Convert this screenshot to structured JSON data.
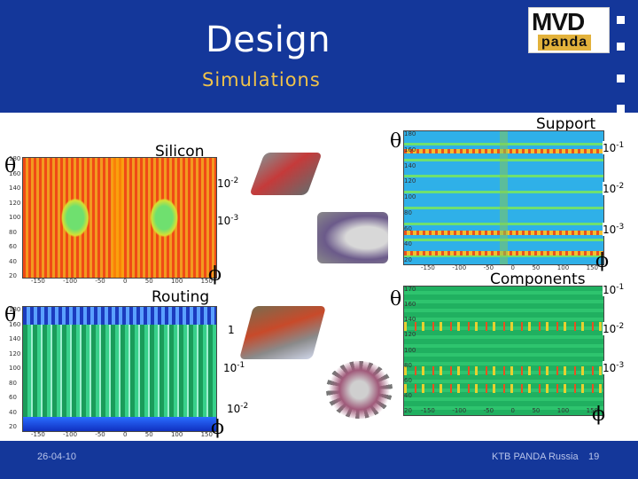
{
  "header": {
    "title": "Design",
    "subtitle": "Simulations",
    "logo_top": "MVD",
    "logo_bottom": "panda"
  },
  "panels": {
    "silicon": {
      "label": "Silicon",
      "scale": [
        "10",
        "10"
      ],
      "exp": [
        "-2",
        "-3"
      ]
    },
    "routing": {
      "label": "Routing",
      "scale": [
        "1",
        "10",
        "10"
      ],
      "exp": [
        "",
        "-1",
        "-2"
      ]
    },
    "support": {
      "label": "Support",
      "scale": [
        "10",
        "10",
        "10"
      ],
      "exp": [
        "-1",
        "-2",
        "-3"
      ]
    },
    "components": {
      "label": "Components",
      "scale": [
        "10",
        "10",
        "10"
      ],
      "exp": [
        "-1",
        "-2",
        "-3"
      ]
    }
  },
  "symbols": {
    "theta": "θ",
    "phi": "ϕ"
  },
  "axis": {
    "x_ticks": [
      "-150",
      "-100",
      "-50",
      "0",
      "50",
      "100",
      "150"
    ],
    "y_ticks_silicon": [
      "180",
      "160",
      "140",
      "120",
      "100",
      "80",
      "60",
      "40",
      "20"
    ],
    "y_ticks_routing": [
      "180",
      "160",
      "140",
      "120",
      "100",
      "80",
      "60",
      "40",
      "20"
    ],
    "y_ticks_support": [
      "180",
      "160",
      "140",
      "120",
      "100",
      "80",
      "60",
      "40",
      "20"
    ],
    "y_ticks_components": [
      "170",
      "160",
      "140",
      "120",
      "100",
      "80",
      "60",
      "40",
      "20"
    ]
  },
  "footer": {
    "date": "26-04-10",
    "org": "KTB  PANDA Russia",
    "page": "19"
  },
  "colors": {
    "background": "#14379a",
    "subtitle": "#f0c34a",
    "content": "#ffffff"
  }
}
